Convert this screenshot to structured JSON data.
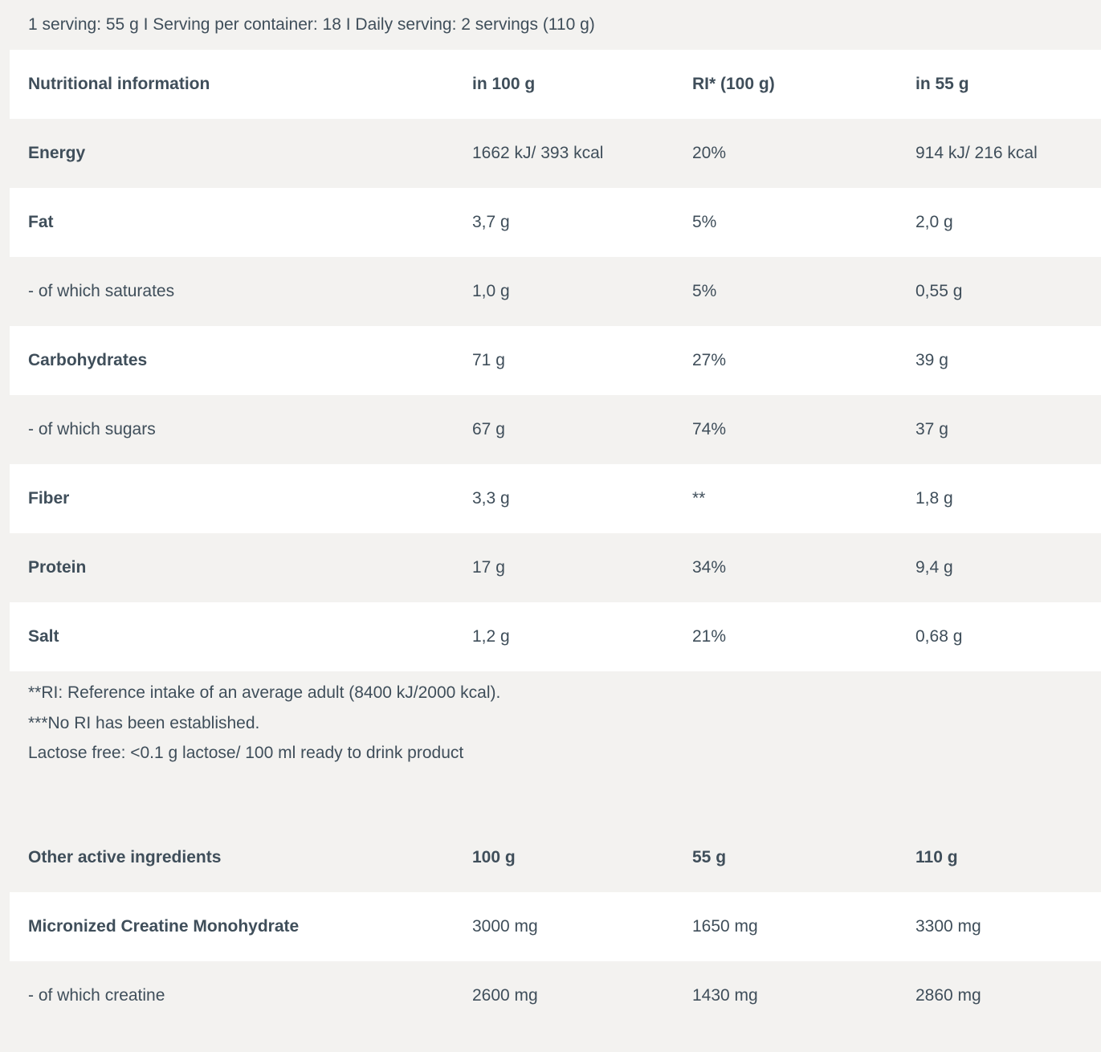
{
  "page": {
    "serving_line": "1 serving: 55 g I Serving per container: 18 I Daily serving: 2 servings (110 g)"
  },
  "colors": {
    "text": "#3f4e5a",
    "page_bg": "#f3f2f0",
    "row_white": "#ffffff"
  },
  "nutrition_table": {
    "headers": [
      "Nutritional information",
      "in 100 g",
      "RI* (100 g)",
      "in 55 g"
    ],
    "rows": [
      {
        "label": "Energy",
        "per_100g": "1662 kJ/ 393 kcal",
        "ri": "20%",
        "per_55g": "914 kJ/ 216 kcal",
        "primary": true
      },
      {
        "label": "Fat",
        "per_100g": "3,7 g",
        "ri": "5%",
        "per_55g": "2,0 g",
        "primary": true
      },
      {
        "label": "- of which saturates",
        "per_100g": "1,0 g",
        "ri": "5%",
        "per_55g": "0,55 g",
        "primary": false
      },
      {
        "label": "Carbohydrates",
        "per_100g": "71 g",
        "ri": "27%",
        "per_55g": "39 g",
        "primary": true
      },
      {
        "label": "- of which sugars",
        "per_100g": "67 g",
        "ri": "74%",
        "per_55g": "37 g",
        "primary": false
      },
      {
        "label": "Fiber",
        "per_100g": "3,3 g",
        "ri": "**",
        "per_55g": "1,8 g",
        "primary": true
      },
      {
        "label": "Protein",
        "per_100g": "17 g",
        "ri": "34%",
        "per_55g": "9,4 g",
        "primary": true
      },
      {
        "label": "Salt",
        "per_100g": "1,2 g",
        "ri": "21%",
        "per_55g": "0,68 g",
        "primary": true
      }
    ]
  },
  "footnotes": [
    "**RI: Reference intake of an average adult (8400 kJ/2000 kcal).",
    "***No RI has been established.",
    "Lactose free: <0.1 g lactose/ 100 ml ready to drink product"
  ],
  "ingredients_table": {
    "headers": [
      "Other active ingredients",
      "100 g",
      "55 g",
      "110 g"
    ],
    "rows": [
      {
        "label": "Micronized Creatine Monohydrate",
        "per_100g": "3000 mg",
        "per_55g": "1650 mg",
        "per_110g": "3300 mg",
        "primary": true
      },
      {
        "label": "- of which creatine",
        "per_100g": "2600 mg",
        "per_55g": "1430 mg",
        "per_110g": "2860 mg",
        "primary": false
      }
    ]
  }
}
